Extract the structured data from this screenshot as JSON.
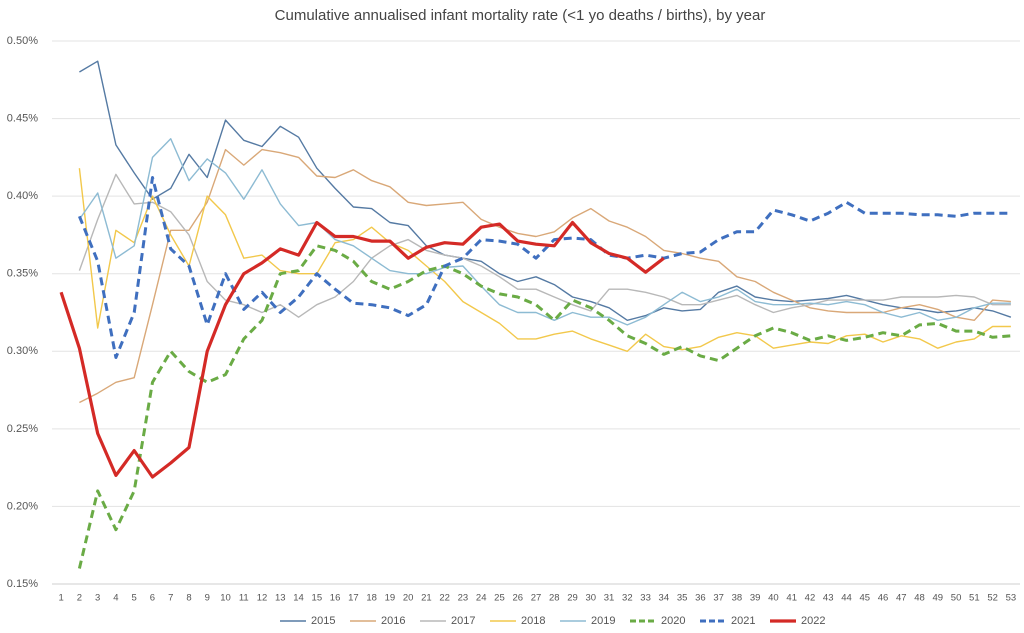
{
  "chart_data": {
    "type": "line",
    "title": "Cumulative annualised infant mortality rate (<1 yo deaths / births), by year",
    "categories": [
      1,
      2,
      3,
      4,
      5,
      6,
      7,
      8,
      9,
      10,
      11,
      12,
      13,
      14,
      15,
      16,
      17,
      18,
      19,
      20,
      21,
      22,
      23,
      24,
      25,
      26,
      27,
      28,
      29,
      30,
      31,
      32,
      33,
      34,
      35,
      36,
      37,
      38,
      39,
      40,
      41,
      42,
      43,
      44,
      45,
      46,
      47,
      48,
      49,
      50,
      51,
      52,
      53
    ],
    "ylim": [
      0.15,
      0.5
    ],
    "yticks": [
      {
        "value": 0.15,
        "label": "0.15%"
      },
      {
        "value": 0.2,
        "label": "0.20%"
      },
      {
        "value": 0.25,
        "label": "0.25%"
      },
      {
        "value": 0.3,
        "label": "0.30%"
      },
      {
        "value": 0.35,
        "label": "0.35%"
      },
      {
        "value": 0.4,
        "label": "0.40%"
      },
      {
        "value": 0.45,
        "label": "0.45%"
      },
      {
        "value": 0.5,
        "label": "0.50%"
      }
    ],
    "grid": true,
    "legend": "bottom",
    "series": [
      {
        "name": "2015",
        "color": "#557aa3",
        "style": "solid",
        "values": [
          null,
          0.48,
          0.487,
          0.433,
          0.415,
          0.398,
          0.405,
          0.427,
          0.412,
          0.449,
          0.436,
          0.432,
          0.445,
          0.438,
          0.418,
          0.405,
          0.393,
          0.392,
          0.383,
          0.381,
          0.368,
          0.362,
          0.36,
          0.358,
          0.35,
          0.345,
          0.348,
          0.343,
          0.335,
          0.332,
          0.328,
          0.32,
          0.323,
          0.328,
          0.326,
          0.327,
          0.338,
          0.342,
          0.335,
          0.333,
          0.332,
          0.333,
          0.334,
          0.336,
          0.333,
          0.33,
          0.328,
          0.327,
          0.325,
          0.326,
          0.328,
          0.326,
          0.322
        ]
      },
      {
        "name": "2016",
        "color": "#d9a878",
        "style": "solid",
        "values": [
          null,
          0.267,
          0.273,
          0.28,
          0.283,
          0.33,
          0.378,
          0.378,
          0.396,
          0.43,
          0.42,
          0.43,
          0.428,
          0.425,
          0.413,
          0.412,
          0.417,
          0.41,
          0.406,
          0.396,
          0.394,
          0.395,
          0.396,
          0.385,
          0.38,
          0.376,
          0.374,
          0.377,
          0.386,
          0.392,
          0.384,
          0.38,
          0.374,
          0.365,
          0.363,
          0.36,
          0.358,
          0.348,
          0.345,
          0.338,
          0.333,
          0.328,
          0.326,
          0.325,
          0.325,
          0.325,
          0.328,
          0.33,
          0.327,
          0.322,
          0.32,
          0.333,
          0.332
        ]
      },
      {
        "name": "2017",
        "color": "#b8b8b8",
        "style": "solid",
        "values": [
          null,
          0.352,
          0.385,
          0.414,
          0.395,
          0.396,
          0.39,
          0.375,
          0.345,
          0.333,
          0.33,
          0.325,
          0.33,
          0.322,
          0.33,
          0.335,
          0.345,
          0.36,
          0.368,
          0.372,
          0.365,
          0.362,
          0.36,
          0.355,
          0.348,
          0.34,
          0.34,
          0.335,
          0.33,
          0.326,
          0.34,
          0.34,
          0.338,
          0.335,
          0.33,
          0.33,
          0.333,
          0.336,
          0.33,
          0.325,
          0.328,
          0.33,
          0.333,
          0.333,
          0.333,
          0.333,
          0.335,
          0.335,
          0.335,
          0.336,
          0.335,
          0.33,
          0.33
        ]
      },
      {
        "name": "2018",
        "color": "#f2c84b",
        "style": "solid",
        "values": [
          null,
          0.418,
          0.315,
          0.378,
          0.37,
          0.4,
          0.375,
          0.355,
          0.4,
          0.388,
          0.36,
          0.362,
          0.352,
          0.35,
          0.35,
          0.37,
          0.372,
          0.38,
          0.37,
          0.365,
          0.355,
          0.345,
          0.332,
          0.325,
          0.318,
          0.308,
          0.308,
          0.311,
          0.313,
          0.308,
          0.304,
          0.3,
          0.311,
          0.303,
          0.301,
          0.303,
          0.309,
          0.312,
          0.31,
          0.302,
          0.304,
          0.306,
          0.305,
          0.31,
          0.311,
          0.306,
          0.31,
          0.308,
          0.302,
          0.306,
          0.308,
          0.316,
          0.316
        ]
      },
      {
        "name": "2019",
        "color": "#8dbbd3",
        "style": "solid",
        "values": [
          null,
          0.385,
          0.402,
          0.36,
          0.368,
          0.425,
          0.437,
          0.41,
          0.424,
          0.415,
          0.398,
          0.417,
          0.395,
          0.381,
          0.383,
          0.372,
          0.368,
          0.36,
          0.352,
          0.35,
          0.35,
          0.354,
          0.355,
          0.342,
          0.33,
          0.325,
          0.325,
          0.32,
          0.325,
          0.322,
          0.322,
          0.317,
          0.322,
          0.33,
          0.338,
          0.332,
          0.335,
          0.34,
          0.332,
          0.33,
          0.33,
          0.331,
          0.33,
          0.332,
          0.33,
          0.325,
          0.322,
          0.325,
          0.32,
          0.322,
          0.328,
          0.331,
          0.331
        ]
      },
      {
        "name": "2020",
        "color": "#6aab45",
        "style": "dashed",
        "values": [
          null,
          0.16,
          0.21,
          0.185,
          0.21,
          0.28,
          0.3,
          0.287,
          0.28,
          0.285,
          0.308,
          0.32,
          0.35,
          0.352,
          0.368,
          0.365,
          0.358,
          0.345,
          0.34,
          0.345,
          0.352,
          0.355,
          0.35,
          0.342,
          0.337,
          0.335,
          0.33,
          0.32,
          0.333,
          0.328,
          0.32,
          0.31,
          0.305,
          0.298,
          0.303,
          0.297,
          0.294,
          0.302,
          0.31,
          0.315,
          0.312,
          0.307,
          0.31,
          0.307,
          0.309,
          0.312,
          0.31,
          0.317,
          0.318,
          0.313,
          0.313,
          0.309,
          0.31
        ]
      },
      {
        "name": "2021",
        "color": "#3f6fbf",
        "style": "dashed",
        "values": [
          null,
          0.387,
          0.358,
          0.296,
          0.325,
          0.412,
          0.366,
          0.355,
          0.317,
          0.35,
          0.327,
          0.338,
          0.325,
          0.335,
          0.35,
          0.34,
          0.331,
          0.33,
          0.328,
          0.323,
          0.33,
          0.355,
          0.36,
          0.372,
          0.371,
          0.369,
          0.36,
          0.372,
          0.373,
          0.372,
          0.362,
          0.36,
          0.362,
          0.36,
          0.363,
          0.364,
          0.372,
          0.377,
          0.377,
          0.391,
          0.388,
          0.384,
          0.389,
          0.396,
          0.389,
          0.389,
          0.389,
          0.388,
          0.388,
          0.387,
          0.389,
          0.389,
          0.389
        ]
      },
      {
        "name": "2022",
        "color": "#d42a26",
        "style": "bold",
        "values": [
          0.338,
          0.302,
          0.247,
          0.22,
          0.236,
          0.219,
          0.228,
          0.238,
          0.3,
          0.33,
          0.35,
          0.357,
          0.366,
          0.362,
          0.383,
          0.374,
          0.374,
          0.371,
          0.371,
          0.36,
          0.367,
          0.37,
          0.369,
          0.38,
          0.382,
          0.371,
          0.369,
          0.368,
          0.383,
          0.37,
          0.363,
          0.36,
          0.351,
          0.36,
          null,
          null,
          null,
          null,
          null,
          null,
          null,
          null,
          null,
          null,
          null,
          null,
          null,
          null,
          null,
          null,
          null,
          null,
          null
        ]
      }
    ]
  }
}
